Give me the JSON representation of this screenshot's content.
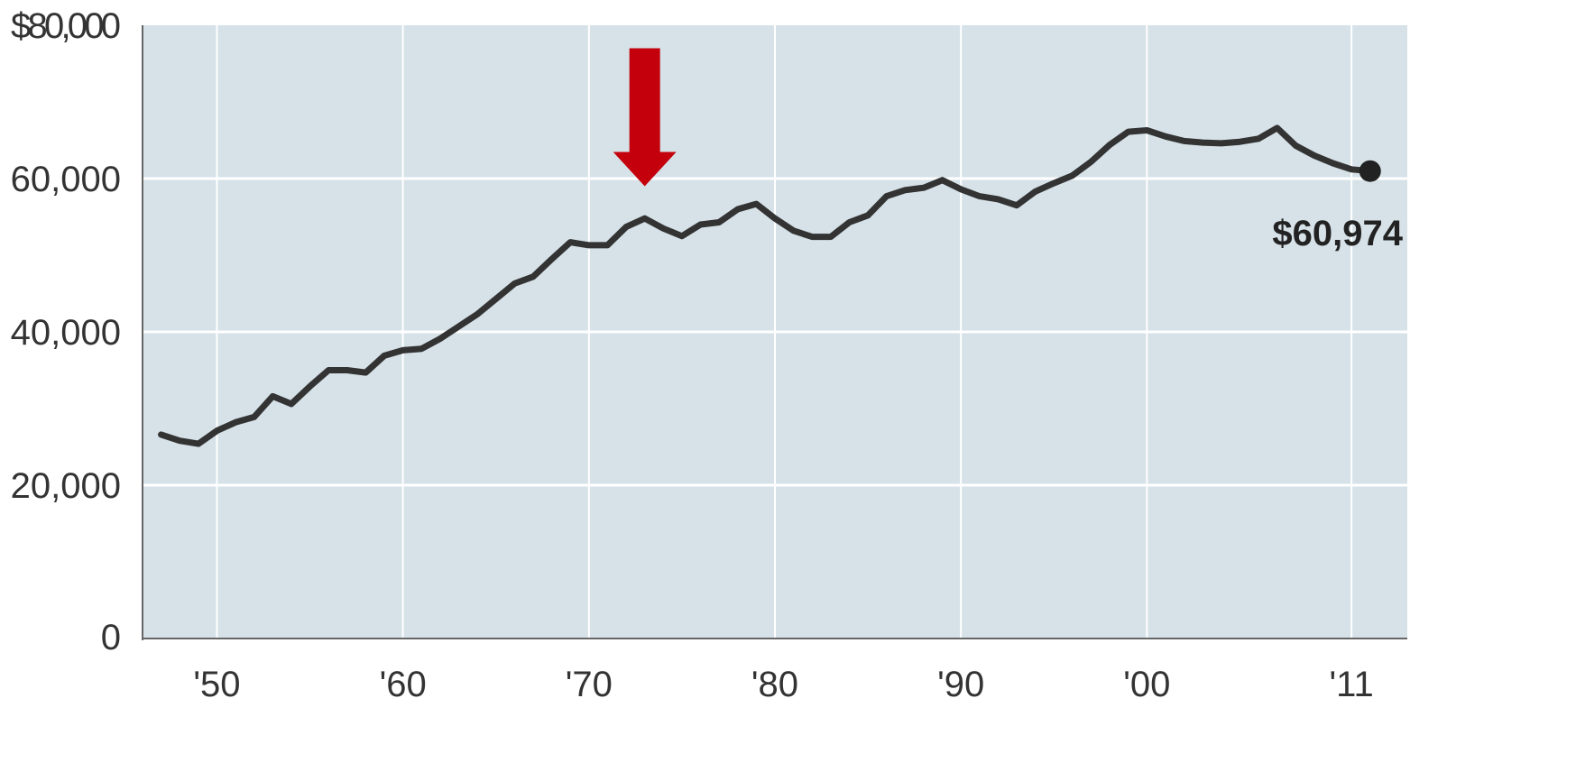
{
  "chart_data": {
    "type": "line",
    "title": "",
    "xlabel": "",
    "ylabel": "",
    "xlim": [
      1946,
      2014
    ],
    "ylim": [
      0,
      80000
    ],
    "y_ticks": [
      {
        "value": 0,
        "label": "0"
      },
      {
        "value": 20000,
        "label": "20,000"
      },
      {
        "value": 40000,
        "label": "40,000"
      },
      {
        "value": 60000,
        "label": "60,000"
      },
      {
        "value": 80000,
        "label": "$80,000"
      }
    ],
    "x_ticks": [
      {
        "value": 1950,
        "label": "'50"
      },
      {
        "value": 1960,
        "label": "'60"
      },
      {
        "value": 1970,
        "label": "'70"
      },
      {
        "value": 1980,
        "label": "'80"
      },
      {
        "value": 1990,
        "label": "'90"
      },
      {
        "value": 2000,
        "label": "'00"
      },
      {
        "value": 2011,
        "label": "'11"
      }
    ],
    "grid": true,
    "colors": {
      "plot_background": "#d6e2e8",
      "gridline": "#ffffff",
      "line": "#333333",
      "arrow": "#c4000c",
      "axis": "#666666"
    },
    "series": [
      {
        "x": [
          1947,
          1948,
          1949,
          1950,
          1951,
          1952,
          1953,
          1954,
          1955,
          1956,
          1957,
          1958,
          1959,
          1960,
          1961,
          1962,
          1963,
          1964,
          1965,
          1966,
          1967,
          1968,
          1969,
          1970,
          1971,
          1972,
          1973,
          1974,
          1975,
          1976,
          1977,
          1978,
          1979,
          1980,
          1981,
          1982,
          1983,
          1984,
          1985,
          1986,
          1987,
          1988,
          1989,
          1990,
          1991,
          1992,
          1993,
          1994,
          1995,
          1996,
          1997,
          1998,
          1999,
          2000,
          2001,
          2002,
          2003,
          2004,
          2005,
          2006,
          2007,
          2008,
          2009,
          2010,
          2011,
          2012
        ],
        "y": [
          26600,
          25800,
          25400,
          27100,
          28200,
          28900,
          31600,
          30600,
          32900,
          35000,
          35000,
          34700,
          36900,
          37600,
          37800,
          39100,
          40700,
          42300,
          44300,
          46300,
          47200,
          49500,
          51700,
          51300,
          51300,
          53700,
          54800,
          53500,
          52500,
          54000,
          54300,
          56000,
          56700,
          54800,
          53200,
          52400,
          52400,
          54300,
          55200,
          57700,
          58500,
          58800,
          59800,
          58600,
          57700,
          57300,
          56500,
          58300,
          59400,
          60400,
          62200,
          64400,
          66100,
          66300,
          65500,
          64900,
          64700,
          64600,
          64800,
          65200,
          66600,
          64300,
          63000,
          62000,
          61200,
          60974
        ]
      }
    ],
    "annotations": {
      "end_value_label": "$60,974",
      "end_point": {
        "x": 2012,
        "y": 60974
      },
      "arrow": {
        "x": 1973,
        "y_top": 77000,
        "y_tip": 59000
      }
    }
  }
}
